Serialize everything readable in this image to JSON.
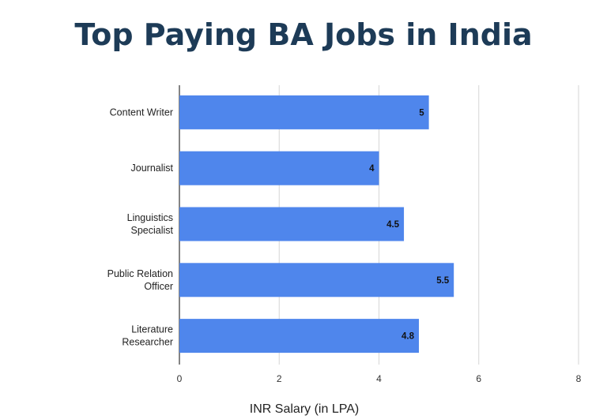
{
  "chart_data": {
    "type": "bar",
    "orientation": "horizontal",
    "title": "Top Paying BA Jobs in India",
    "xlabel": "INR Salary (in LPA)",
    "ylabel": "",
    "categories": [
      [
        "Content Writer"
      ],
      [
        "Journalist"
      ],
      [
        "Linguistics",
        "Specialist"
      ],
      [
        "Public Relation",
        "Officer"
      ],
      [
        "Literature",
        "Researcher"
      ]
    ],
    "values": [
      5,
      4,
      4.5,
      5.5,
      4.8
    ],
    "value_labels": [
      "5",
      "4",
      "4.5",
      "5.5",
      "4.8"
    ],
    "xlim": [
      0,
      8
    ],
    "xticks": [
      0,
      2,
      4,
      6,
      8
    ],
    "grid": "vertical",
    "bar_color": "#4f86ec",
    "title_color": "#1d3b57"
  }
}
